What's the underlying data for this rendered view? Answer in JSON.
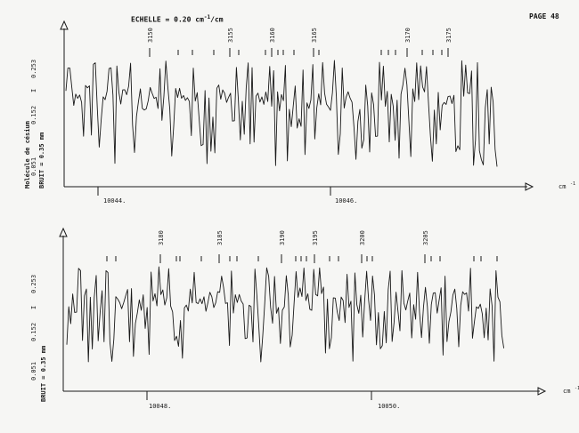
{
  "header": {
    "scale_label": "ECHELLE = 0.20 cm",
    "scale_exp": "-1",
    "scale_suffix": "/cm",
    "page_label": "PAGE 48"
  },
  "chart_data": [
    {
      "type": "line",
      "panel": "upper",
      "xlabel": "cm",
      "xlabel_exp": "-1",
      "yaxis_side_labels": [
        "Molécule de césium",
        "BRUIT = 0.35 mm"
      ],
      "yaxis_marker": "I",
      "y_ticks": [
        "0.051",
        "0.152",
        "0.253"
      ],
      "x_ticks": [
        "10044.",
        "10046."
      ],
      "line_numbers": [
        "3150",
        "3155",
        "3160",
        "3165",
        "3170",
        "3175"
      ],
      "grid": false,
      "seed": 11
    },
    {
      "type": "line",
      "panel": "lower",
      "xlabel": "cm",
      "xlabel_exp": "-1",
      "yaxis_side_labels": [
        "BRUIT = 0.35 mm"
      ],
      "yaxis_marker": "I",
      "y_ticks": [
        "0.051",
        "0.152",
        "0.253"
      ],
      "x_ticks": [
        "10048.",
        "10050."
      ],
      "line_numbers": [
        "3180",
        "3185",
        "3190",
        "3195",
        "3200",
        "3205"
      ],
      "grid": false,
      "seed": 29
    }
  ]
}
